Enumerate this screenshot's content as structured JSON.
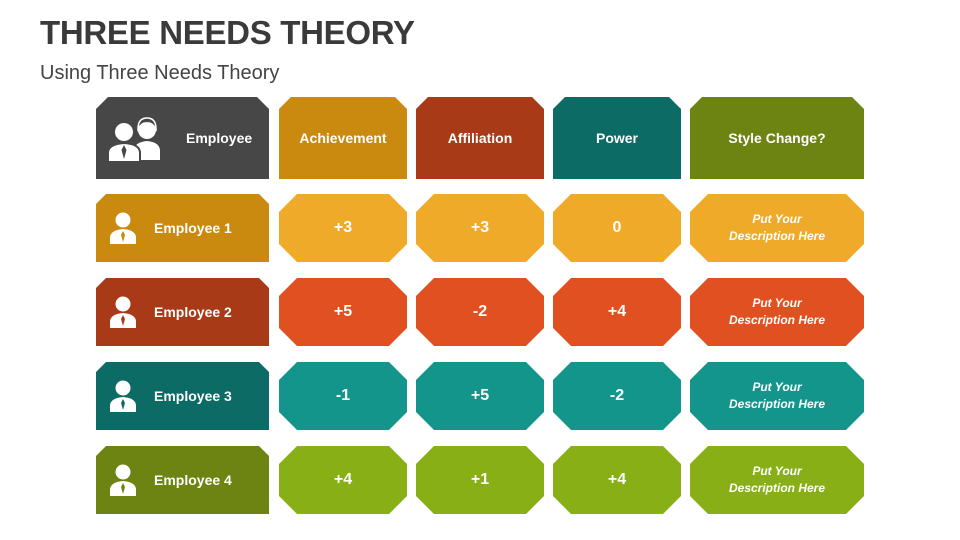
{
  "title": "THREE NEEDS THEORY",
  "subtitle": "Using Three Needs Theory",
  "header": {
    "employee": "Employee",
    "achievement": "Achievement",
    "affiliation": "Affiliation",
    "power": "Power",
    "style_change": "Style Change?"
  },
  "icons": {
    "header": "two-people-icon",
    "row": "person-with-tie-icon"
  },
  "colors": {
    "header_employee": "#474747",
    "header_achievement": "#c98a0f",
    "header_affiliation": "#a83a18",
    "header_power": "#0d6b66",
    "header_style": "#6d8413",
    "rows": [
      {
        "label": "#c98a0f",
        "cell": "#f0aa2a"
      },
      {
        "label": "#a83a18",
        "cell": "#e05020"
      },
      {
        "label": "#0d6b66",
        "cell": "#14958c"
      },
      {
        "label": "#6d8413",
        "cell": "#88b016"
      }
    ]
  },
  "rows": [
    {
      "name": "Employee 1",
      "achievement": "+3",
      "affiliation": "+3",
      "power": "0",
      "desc1": "Put Your",
      "desc2": "Description Here"
    },
    {
      "name": "Employee 2",
      "achievement": "+5",
      "affiliation": "-2",
      "power": "+4",
      "desc1": "Put Your",
      "desc2": "Description Here"
    },
    {
      "name": "Employee 3",
      "achievement": "-1",
      "affiliation": "+5",
      "power": "-2",
      "desc1": "Put Your",
      "desc2": "Description Here"
    },
    {
      "name": "Employee 4",
      "achievement": "+4",
      "affiliation": "+1",
      "power": "+4",
      "desc1": "Put Your",
      "desc2": "Description Here"
    }
  ]
}
